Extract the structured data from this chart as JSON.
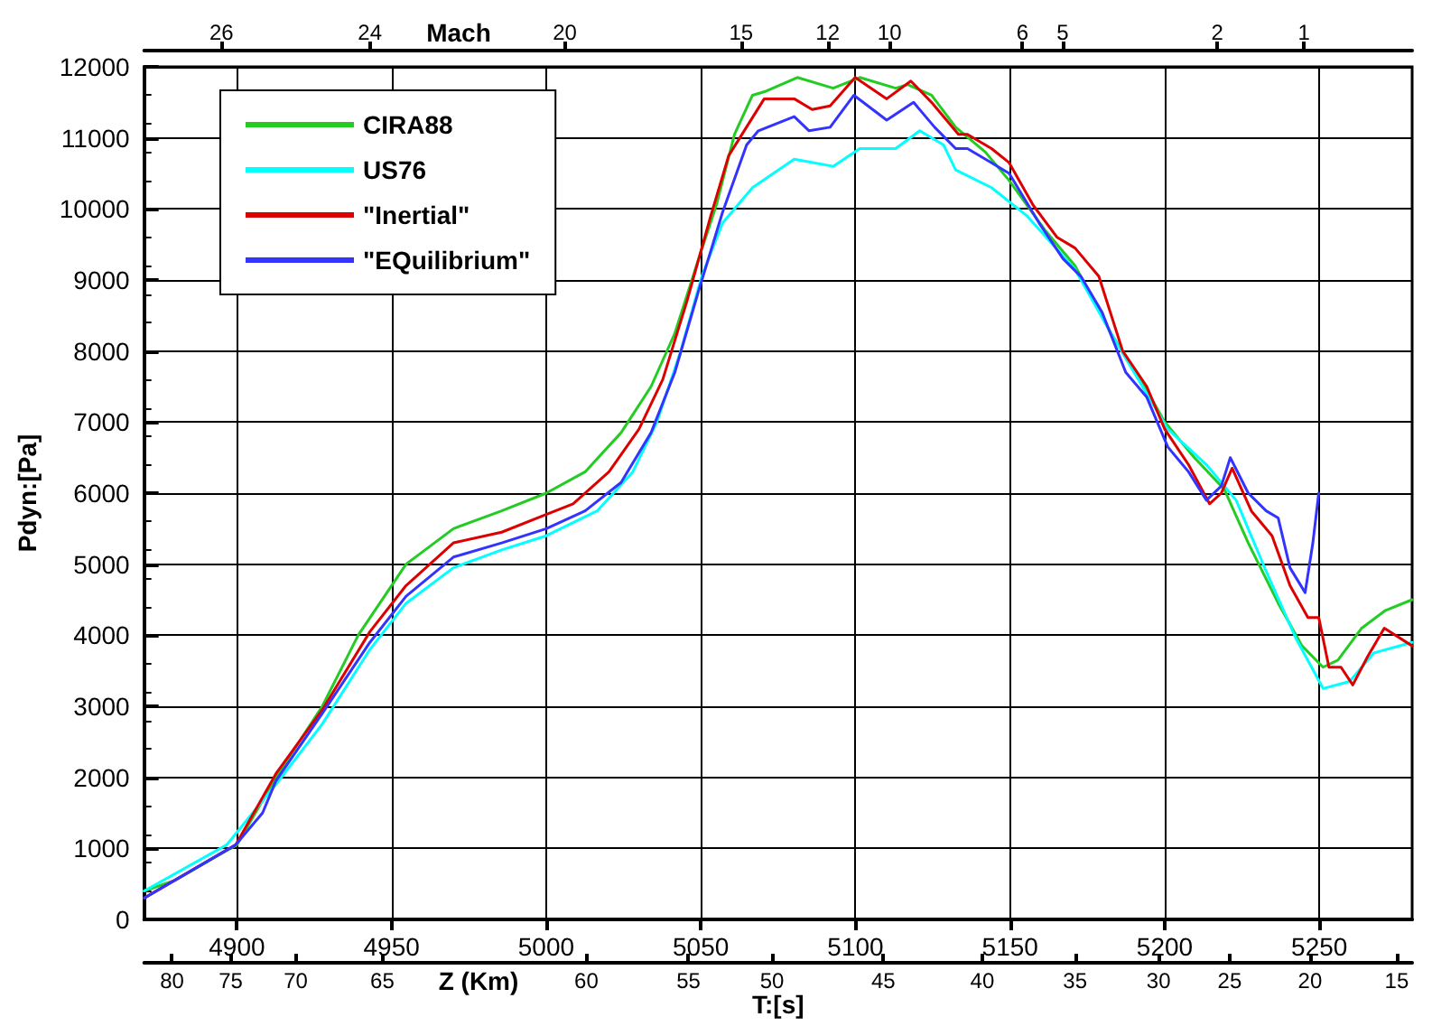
{
  "chart_data": {
    "type": "line",
    "xlabel": "T:[s]",
    "ylabel": "Pdyn:[Pa]",
    "xlim": [
      4870,
      5280
    ],
    "xticks": [
      4900,
      4950,
      5000,
      5050,
      5100,
      5150,
      5200,
      5250
    ],
    "ylim": [
      0,
      12000
    ],
    "yticks": [
      0,
      1000,
      2000,
      3000,
      4000,
      5000,
      6000,
      7000,
      8000,
      9000,
      10000,
      11000,
      12000
    ],
    "grid": true,
    "legend": "top left",
    "marker": "none",
    "annotations": [
      "Mach",
      "Z (Km)",
      "80",
      "75",
      "70",
      "65",
      "60",
      "55",
      "50",
      "45",
      "40",
      "35",
      "30",
      "25",
      "20",
      "15",
      "26",
      "24",
      "20",
      "15",
      "12",
      "10",
      "6",
      "5",
      "2",
      "1"
    ],
    "series": [
      {
        "name": "CIRA88",
        "color": "#22cc22",
        "x": [
          4870,
          4880,
          4890,
          4900,
          4912.6,
          4927.6,
          4939.2,
          4954.7,
          4970,
          4985.6,
          5000,
          5012.6,
          5024.2,
          5033.9,
          5041.6,
          5049.3,
          5055,
          5060.9,
          5066.7,
          5070.6,
          5081.2,
          5092.8,
          5101.4,
          5113,
          5116.9,
          5124.6,
          5132.4,
          5142,
          5149.7,
          5161.3,
          5171,
          5182.6,
          5192.2,
          5200,
          5209.6,
          5219.3,
          5227,
          5236.7,
          5244.4,
          5251.2,
          5256,
          5263.7,
          5271.4,
          5280
        ],
        "values": [
          400,
          550,
          800,
          1050,
          2000,
          3000,
          4000,
          5000,
          5500,
          5750,
          6000,
          6300,
          6850,
          7500,
          8250,
          9300,
          10050,
          11050,
          11600,
          11650,
          11850,
          11700,
          11850,
          11700,
          11750,
          11600,
          11150,
          10800,
          10400,
          9700,
          9200,
          8250,
          7600,
          7000,
          6500,
          6050,
          5300,
          4450,
          3850,
          3550,
          3650,
          4100,
          4350,
          4500
        ]
      },
      {
        "name": "US76",
        "color": "#00ffff",
        "x": [
          4870,
          4896.7,
          4912.6,
          4927.6,
          4943,
          4954.7,
          4970,
          4985.6,
          5000,
          5016.5,
          5028,
          5035.8,
          5043.5,
          5050.3,
          5057,
          5066.7,
          5080.2,
          5092.8,
          5101.4,
          5113,
          5120.8,
          5128.5,
          5132.4,
          5144,
          5155.5,
          5171,
          5182.6,
          5194.2,
          5201,
          5213.5,
          5223.1,
          5232.8,
          5242.5,
          5251.2,
          5259.8,
          5267.6,
          5280
        ],
        "values": [
          400,
          1050,
          1900,
          2750,
          3800,
          4450,
          4950,
          5200,
          5400,
          5750,
          6300,
          7000,
          8000,
          9050,
          9800,
          10300,
          10700,
          10600,
          10850,
          10850,
          11100,
          10900,
          10550,
          10300,
          9900,
          9150,
          8250,
          7400,
          6900,
          6400,
          5900,
          4900,
          3950,
          3250,
          3350,
          3750,
          3900
        ]
      },
      {
        "name": "\"Inertial\"",
        "color": "#dd0000",
        "x": [
          4870,
          4899.6,
          4912.6,
          4927.6,
          4943,
          4954.7,
          4970,
          4985.6,
          5000,
          5008.7,
          5020.3,
          5030,
          5037.7,
          5045.5,
          5053.2,
          5059,
          5070.5,
          5080.2,
          5086,
          5091.8,
          5099.9,
          5110.1,
          5117.9,
          5124.6,
          5133.3,
          5136.2,
          5144,
          5149.7,
          5157.5,
          5165.2,
          5171,
          5178.7,
          5186.4,
          5194.2,
          5200,
          5207.7,
          5214.5,
          5218.3,
          5221.8,
          5228,
          5234.7,
          5240.5,
          5246.3,
          5249.8,
          5253.1,
          5257,
          5260.8,
          5265.6,
          5271,
          5280
        ],
        "values": [
          300,
          1050,
          2050,
          2950,
          4050,
          4700,
          5300,
          5450,
          5700,
          5850,
          6300,
          6900,
          7600,
          8700,
          9900,
          10750,
          11550,
          11550,
          11400,
          11450,
          11850,
          11550,
          11800,
          11500,
          11050,
          11050,
          10850,
          10650,
          10050,
          9600,
          9450,
          9050,
          8000,
          7500,
          6900,
          6400,
          5850,
          6000,
          6350,
          5750,
          5400,
          4700,
          4250,
          4250,
          3550,
          3550,
          3300,
          3700,
          4100,
          3850
        ]
      },
      {
        "name": "\"EQuilibrium\"",
        "color": "#3333ff",
        "x": [
          4870,
          4899.6,
          4908.3,
          4912.6,
          4927.6,
          4943,
          4954.7,
          4970,
          4985.6,
          5000,
          5012.6,
          5024.2,
          5033.9,
          5041.6,
          5049.3,
          5057,
          5064.8,
          5068.6,
          5080.2,
          5085,
          5091.8,
          5099.5,
          5110.1,
          5118.8,
          5125.6,
          5132.4,
          5136.2,
          5144,
          5149.7,
          5159.4,
          5167.1,
          5172.9,
          5179.7,
          5187.4,
          5194.2,
          5201,
          5207.7,
          5213.5,
          5218.3,
          5221.2,
          5227,
          5232.8,
          5236.7,
          5240.5,
          5245.4,
          5247.9,
          5249.8
        ],
        "values": [
          300,
          1050,
          1500,
          1950,
          2900,
          3900,
          4550,
          5100,
          5300,
          5500,
          5750,
          6150,
          6850,
          7700,
          8850,
          9950,
          10900,
          11100,
          11300,
          11100,
          11150,
          11600,
          11250,
          11500,
          11150,
          10850,
          10850,
          10650,
          10500,
          9800,
          9300,
          9050,
          8550,
          7700,
          7350,
          6650,
          6300,
          5900,
          6100,
          6500,
          6000,
          5750,
          5650,
          4950,
          4600,
          5300,
          6000
        ]
      }
    ]
  }
}
